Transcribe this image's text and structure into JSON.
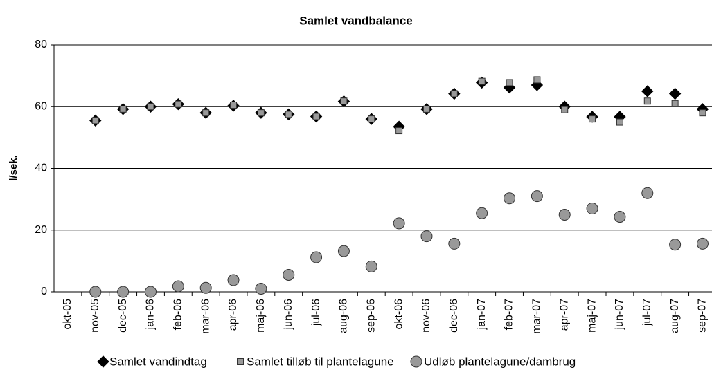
{
  "chart_data": {
    "type": "scatter",
    "title": "Samlet vandbalance",
    "y_label": "l/sek.",
    "categories": [
      "okt-05",
      "nov-05",
      "dec-05",
      "jan-06",
      "feb-06",
      "mar-06",
      "apr-06",
      "maj-06",
      "jun-06",
      "jul-06",
      "aug-06",
      "sep-06",
      "okt-06",
      "nov-06",
      "dec-06",
      "jan-07",
      "feb-07",
      "mar-07",
      "apr-07",
      "maj-07",
      "jun-07",
      "jul-07",
      "aug-07",
      "sep-07"
    ],
    "series": [
      {
        "name": "Samlet vandindtag",
        "color": "#000000",
        "marker": "diamond",
        "values": [
          null,
          55.5,
          59.2,
          60,
          60.8,
          58,
          60.3,
          58,
          57.5,
          56.8,
          61.7,
          56,
          53.5,
          59.2,
          64.2,
          67.8,
          66.2,
          67,
          60,
          56.7,
          56.7,
          65,
          64.2,
          59.2
        ]
      },
      {
        "name": "Samlet tilløb til plantelagune",
        "color": "#999999",
        "marker": "square",
        "values": [
          null,
          55.5,
          59.2,
          60,
          60.8,
          58,
          60.5,
          58,
          57.5,
          56.8,
          61.8,
          56,
          52.2,
          59.2,
          64.2,
          68.2,
          67.8,
          68.7,
          59,
          56,
          55,
          61.8,
          61,
          58
        ]
      },
      {
        "name": "Udløb plantelagune/dambrug",
        "color": "#999999",
        "marker": "circle",
        "values": [
          null,
          0,
          0,
          0,
          1.8,
          1.3,
          3.8,
          1,
          5.5,
          11.2,
          13.2,
          8.2,
          22.2,
          18,
          15.6,
          25.5,
          30.3,
          31,
          25,
          27,
          24.3,
          32,
          15.3,
          15.6
        ]
      }
    ],
    "ylim": [
      0,
      80
    ],
    "yticks": [
      0,
      20,
      40,
      60,
      80
    ],
    "grid": true,
    "legend": "bottom"
  }
}
